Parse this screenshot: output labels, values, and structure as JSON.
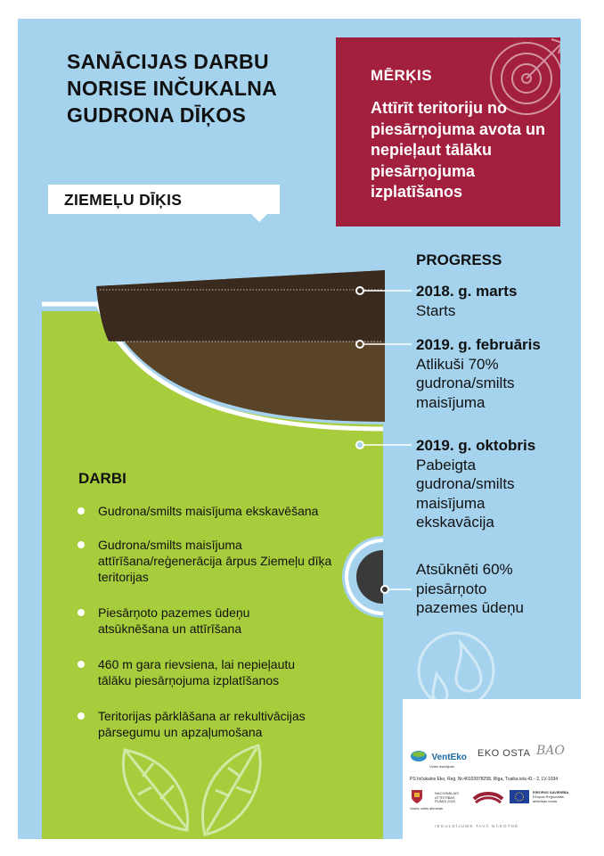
{
  "title": {
    "lines": [
      "SANĀCIJAS DARBU",
      "NORISE INČUKALNA",
      "GUDRONA DĪĶOS"
    ]
  },
  "goal": {
    "label": "MĒRĶIS",
    "text": "Attīrīt teritoriju no piesārņojuma avota un nepieļaut tālāku piesārņojuma izplatīšanos"
  },
  "section": {
    "label": "ZIEMEĻU DĪĶIS"
  },
  "progress": {
    "heading": "PROGRESS",
    "milestones": [
      {
        "date": "2018. g. marts",
        "text": "Starts"
      },
      {
        "date": "2019. g. februāris",
        "text": "Atlikuši 70% gudrona/smilts maisījuma"
      },
      {
        "date": "2019. g. oktobris",
        "text": "Pabeigta gudrona/smilts maisījuma ekskavācija"
      },
      {
        "date": "",
        "text": "Atsūknēti 60% piesārņoto pazemes ūdeņu"
      }
    ]
  },
  "works": {
    "heading": "DARBI",
    "items": [
      "Gudrona/smilts maisījuma ekskavēšana",
      "Gudrona/smilts maisījuma attīrīšana/reģenerācija ārpus Ziemeļu dīķa teritorijas",
      "Piesārņoto pazemes ūdeņu atsūknēšana un attīrīšana",
      "460 m gara rievsiena, lai nepieļautu tālāku piesārņojuma izplatīšanos",
      "Teritorijas pārklāšana ar rekultivācijas pārsegumu un apzaļumošana"
    ]
  },
  "footer": {
    "logo_venteko": "VentEko",
    "logo_venteko_sub": "Vides risinājumi",
    "logo_ekoosta": "EKO OSTA",
    "logo_bao": "BAO",
    "address": "PS Inčukalns Eko, Reģ. Nr.40103978258, Rīga, Tvaika iela 41 - 2, LV-1034",
    "logo_vvd": "Valsts vides dienests",
    "logo_nap": "NACIONĀLAIS ATTĪSTĪBAS PLĀNS 2020",
    "logo_eu": "EIROPAS SAVIENĪBA",
    "logo_eu_sub": "Eiropas Reģionālās attīstības fonds",
    "slogan": "IEGULDĪJUMS TAVĀ NĀKOTNĒ"
  },
  "icons": [
    "target-icon",
    "leaves-icon",
    "water-drops-icon",
    "coat-of-arms-icon",
    "latvia-flag-icon",
    "eu-flag-icon"
  ],
  "colors": {
    "background": "#a5d3ee",
    "goal_box": "#a21f3d",
    "grass": "#a8cd3c",
    "tar": "#3a2a1e",
    "soil": "#5a4428",
    "white": "#ffffff"
  }
}
